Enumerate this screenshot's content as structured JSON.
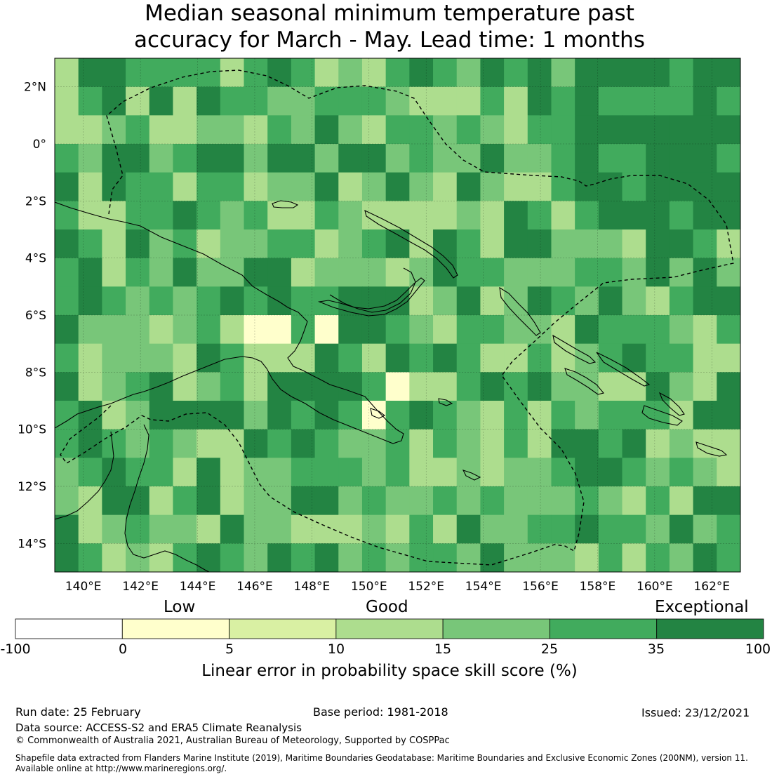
{
  "title": {
    "line1": "Median seasonal minimum temperature past",
    "line2": "accuracy for March - May. Lead time: 1 months"
  },
  "map": {
    "lon_labels": [
      "140°E",
      "142°E",
      "144°E",
      "146°E",
      "148°E",
      "150°E",
      "152°E",
      "154°E",
      "156°E",
      "158°E",
      "160°E",
      "162°E"
    ],
    "lon_values": [
      140,
      142,
      144,
      146,
      148,
      150,
      152,
      154,
      156,
      158,
      160,
      162
    ],
    "lat_labels": [
      "2°N",
      "0°",
      "2°S",
      "4°S",
      "6°S",
      "8°S",
      "10°S",
      "12°S",
      "14°S"
    ],
    "lat_values": [
      2,
      0,
      -2,
      -4,
      -6,
      -8,
      -10,
      -12,
      -14
    ],
    "lon_range": [
      139,
      163
    ],
    "lat_range": [
      -15,
      3
    ],
    "gridlines": true
  },
  "colorbar": {
    "categories": [
      "Low",
      "Good",
      "Exceptional"
    ],
    "ticks": [
      "-100",
      "0",
      "5",
      "10",
      "15",
      "25",
      "35",
      "100"
    ],
    "colors": [
      "#ffffff",
      "#ffffcc",
      "#d9f0a3",
      "#addd8e",
      "#78c679",
      "#41ab5d",
      "#238443"
    ],
    "label": "Linear error in probability space skill score (%)"
  },
  "footer": {
    "run_date": "Run date: 25 February",
    "base_period": "Base period: 1981-2018",
    "issued": "Issued: 23/12/2021",
    "data_source": "Data source: ACCESS-S2 and ERA5 Climate Reanalysis",
    "copyright": "© Commonwealth of Australia 2021, Australian Bureau of Meteorology, Supported by COSPPac",
    "shapefile_line1": "Shapefile data extracted from Flanders Marine Institute (2019), Maritime Boundaries Geodatabase: Maritime Boundaries and Exclusive Economic Zones (200NM), version 11.",
    "shapefile_line2": "Available online at http://www.marineregions.org/."
  }
}
